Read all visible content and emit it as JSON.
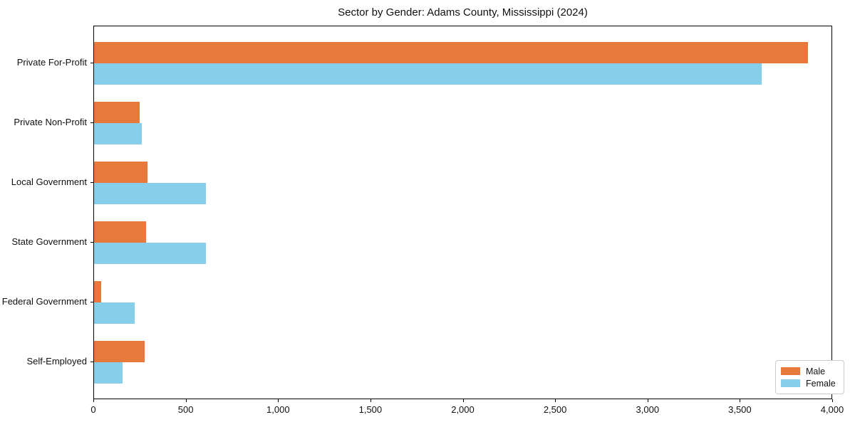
{
  "title": "Sector by Gender: Adams County, Mississippi (2024)",
  "chart_data": {
    "type": "bar",
    "orientation": "horizontal",
    "title": "Sector by Gender: Adams County, Mississippi (2024)",
    "categories": [
      "Private For-Profit",
      "Private Non-Profit",
      "Local Government",
      "State Government",
      "Federal Government",
      "Self-Employed"
    ],
    "series": [
      {
        "name": "Male",
        "color": "#e8793c",
        "values": [
          3865,
          245,
          290,
          280,
          38,
          272
        ]
      },
      {
        "name": "Female",
        "color": "#87ceeb",
        "values": [
          3615,
          260,
          605,
          605,
          220,
          155
        ]
      }
    ],
    "xlabel": "",
    "ylabel": "",
    "xlim": [
      0,
      4000
    ],
    "xticks": [
      0,
      500,
      1000,
      1500,
      2000,
      2500,
      3000,
      3500,
      4000
    ],
    "xtick_labels": [
      "0",
      "500",
      "1,000",
      "1,500",
      "2,000",
      "2,500",
      "3,000",
      "3,500",
      "4,000"
    ],
    "grid": false,
    "legend": {
      "position": "lower right",
      "entries": [
        "Male",
        "Female"
      ]
    }
  },
  "colors": {
    "male": "#e8793c",
    "female": "#87ceeb",
    "axis": "#000000",
    "text": "#111111",
    "legend_border": "#cccccc",
    "background": "#ffffff"
  }
}
